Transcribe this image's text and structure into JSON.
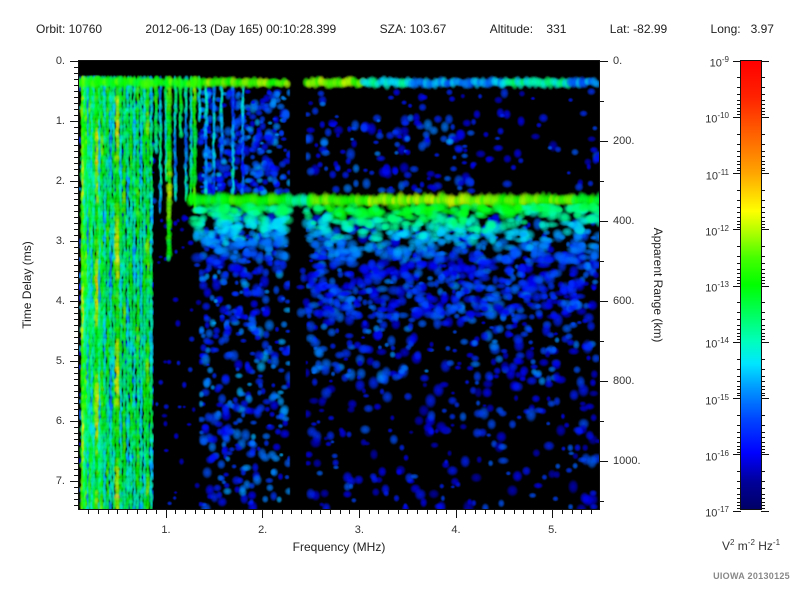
{
  "header": {
    "items": [
      "Orbit: 10760",
      "2012-06-13 (Day 165) 00:10:28.399",
      "SZA: 103.67",
      "Altitude:    331",
      "Lat: -82.99",
      "Long:   3.97"
    ]
  },
  "footer": {
    "credit": "UIOWA 20130125"
  },
  "chart_data": {
    "type": "heatmap",
    "xlabel": "Frequency (MHz)",
    "x_range": [
      0.1,
      5.5
    ],
    "x_major_ticks": [
      1,
      2,
      3,
      4,
      5
    ],
    "x_tick_labels": [
      "1.",
      "2.",
      "3.",
      "4.",
      "5."
    ],
    "x_minor_step": 0.1,
    "ylabel_left": "Time Delay (ms)",
    "y_range": [
      0,
      7.5
    ],
    "y_major_ticks": [
      0,
      1,
      2,
      3,
      4,
      5,
      6,
      7
    ],
    "y_tick_labels": [
      "0.",
      "1.",
      "2.",
      "3.",
      "4.",
      "5.",
      "6.",
      "7."
    ],
    "y_minor_step": 0.1,
    "ylabel_right": "Apparent Range (km)",
    "right_range": [
      0,
      1125
    ],
    "right_major_ticks": [
      0,
      200,
      400,
      600,
      800,
      1000
    ],
    "right_tick_labels": [
      "0.",
      "200.",
      "400.",
      "600.",
      "800.",
      "1000."
    ],
    "right_minor_step": 100,
    "grid": false,
    "colorbar": {
      "exponent_base": "10",
      "tick_exponents": [
        "-9",
        "-10",
        "-11",
        "-12",
        "-13",
        "-14",
        "-15",
        "-16",
        "-17"
      ],
      "unit_parts": [
        [
          "V",
          "2"
        ],
        [
          "m",
          "-2"
        ],
        [
          "Hz",
          "-1"
        ]
      ],
      "stops": [
        [
          0.0,
          "#000066"
        ],
        [
          0.06,
          "#000099"
        ],
        [
          0.125,
          "#0000ff"
        ],
        [
          0.2,
          "#0044ff"
        ],
        [
          0.27,
          "#0099ff"
        ],
        [
          0.325,
          "#00e6ff"
        ],
        [
          0.375,
          "#00ffbb"
        ],
        [
          0.43,
          "#00ff66"
        ],
        [
          0.5,
          "#00ff00"
        ],
        [
          0.56,
          "#44ff00"
        ],
        [
          0.615,
          "#aaff00"
        ],
        [
          0.665,
          "#ffff00"
        ],
        [
          0.75,
          "#ffa500"
        ],
        [
          0.83,
          "#ff6600"
        ],
        [
          0.92,
          "#ff2200"
        ],
        [
          1.0,
          "#ff0000"
        ]
      ]
    },
    "seed": 20130125,
    "features": {
      "striations": {
        "d0": 0.3,
        "d1": 7.5,
        "lines": [
          [
            0.135,
            -13.0,
            2
          ],
          [
            0.148,
            -12.3,
            2.5
          ],
          [
            0.163,
            -13.6,
            2
          ],
          [
            0.178,
            -13.1,
            2
          ],
          [
            0.196,
            -14.3,
            2
          ],
          [
            0.215,
            -13.3,
            2.2
          ],
          [
            0.235,
            -14.0,
            2
          ],
          [
            0.258,
            -13.5,
            2
          ],
          [
            0.29,
            -12.3,
            3
          ],
          [
            0.315,
            -14.1,
            2
          ],
          [
            0.34,
            -13.2,
            2.2
          ],
          [
            0.368,
            -13.8,
            2
          ],
          [
            0.4,
            -13.3,
            2.2
          ],
          [
            0.43,
            -14.2,
            2
          ],
          [
            0.46,
            -13.6,
            2
          ],
          [
            0.5,
            -12.4,
            3
          ],
          [
            0.535,
            -13.8,
            2
          ],
          [
            0.57,
            -13.2,
            2.2
          ],
          [
            0.605,
            -14.0,
            2
          ],
          [
            0.64,
            -13.4,
            2.2
          ],
          [
            0.675,
            -13.9,
            2
          ],
          [
            0.71,
            -13.3,
            2.2
          ],
          [
            0.745,
            -14.1,
            2
          ],
          [
            0.78,
            -13.5,
            2.2
          ],
          [
            0.815,
            -13.1,
            2.4
          ],
          [
            0.85,
            -13.9,
            2
          ]
        ]
      },
      "streaks": [
        [
          0.9,
          -13.4,
          2.5,
          0.3,
          1.5
        ],
        [
          0.945,
          -14.3,
          2,
          0.3,
          2.5
        ],
        [
          1.005,
          -14.0,
          2,
          0.3,
          2.0
        ],
        [
          1.035,
          -12.7,
          3,
          0.3,
          3.3
        ],
        [
          1.1,
          -14.4,
          2,
          0.3,
          2.3
        ],
        [
          1.155,
          -13.7,
          2.2,
          0.3,
          1.25
        ],
        [
          1.21,
          -14.5,
          2,
          0.3,
          2.3
        ],
        [
          1.265,
          -14.0,
          2,
          0.3,
          2.4
        ],
        [
          1.3,
          -12.9,
          2.6,
          0.3,
          2.5
        ],
        [
          1.35,
          -13.9,
          2,
          0.3,
          1.0
        ],
        [
          1.42,
          -14.6,
          2,
          0.45,
          2.2
        ],
        [
          1.5,
          -14.9,
          2,
          0.45,
          2.2
        ],
        [
          1.58,
          -14.6,
          2,
          0.45,
          1.6
        ],
        [
          1.7,
          -14.8,
          2,
          0.45,
          2.2
        ],
        [
          1.8,
          -15.0,
          2,
          0.45,
          2.2
        ]
      ],
      "noise_regions": [
        [
          0.1,
          0.875,
          0.3,
          7.5,
          650,
          -16.2,
          -14.6,
          2,
          5
        ],
        [
          1.36,
          2.29,
          0.5,
          2.2,
          260,
          -16.0,
          -14.7,
          2.5,
          5.5
        ],
        [
          2.455,
          5.5,
          0.5,
          0.95,
          28,
          -16.3,
          -15.3,
          2.5,
          5
        ],
        [
          2.455,
          4.2,
          0.95,
          2.2,
          135,
          -16.2,
          -15.0,
          2.5,
          6
        ],
        [
          4.2,
          5.5,
          0.95,
          2.2,
          32,
          -16.3,
          -15.2,
          2.5,
          6
        ],
        [
          1.36,
          2.29,
          2.5,
          7.5,
          430,
          -16.0,
          -14.7,
          2.5,
          6
        ],
        [
          2.455,
          5.5,
          2.6,
          5.4,
          540,
          -16.2,
          -14.9,
          2.5,
          6.5
        ],
        [
          2.455,
          5.5,
          5.4,
          7.5,
          210,
          -16.4,
          -15.2,
          2.5,
          6.5
        ]
      ],
      "noise_regions_late": [
        [
          0.9,
          1.345,
          2.6,
          7.5,
          42,
          -16.3,
          -15.5,
          2,
          4
        ]
      ],
      "black_rects": [
        [
          0.875,
          1.345,
          2.55,
          7.5
        ]
      ],
      "gap": [
        2.29,
        2.455
      ],
      "top_band": {
        "center": 0.36,
        "halfwidth": 0.09,
        "noise": 0.5,
        "segments": [
          [
            0.1,
            1.3,
            -12.8
          ],
          [
            1.3,
            2.28,
            -12.5
          ],
          [
            2.28,
            2.46,
            null
          ],
          [
            2.46,
            3.05,
            -12.3
          ],
          [
            3.05,
            3.55,
            -14.2
          ],
          [
            3.55,
            4.5,
            -14.8
          ],
          [
            4.5,
            5.2,
            -14.0
          ],
          [
            5.2,
            5.5,
            -15.0
          ]
        ]
      },
      "echo_band": {
        "center": 2.33,
        "halfwidth": 0.12,
        "noise": 0.4,
        "segments": [
          [
            1.25,
            1.6,
            -13.2
          ],
          [
            1.6,
            2.28,
            -12.8
          ],
          [
            2.28,
            2.5,
            -13.8
          ],
          [
            2.5,
            3.1,
            -12.5
          ],
          [
            3.1,
            4.3,
            -12.2
          ],
          [
            4.3,
            5.25,
            -12.5
          ],
          [
            5.25,
            5.5,
            -13.0
          ]
        ],
        "tail": [
          2.45,
          3.5,
          700,
          1.3,
          5.5,
          -13.6,
          -15.9
        ],
        "tail2": [
          3.5,
          4.3,
          260,
          2.4,
          5.3,
          -16.2,
          -15.1
        ]
      },
      "bright_spots": [
        [
          3.95,
          1.35,
          -14.6,
          5
        ],
        [
          2.63,
          0.72,
          -15.0,
          4
        ],
        [
          1.62,
          3.05,
          -14.4,
          5
        ],
        [
          2.05,
          2.92,
          -14.7,
          4
        ],
        [
          2.93,
          3.98,
          -15.0,
          5
        ],
        [
          4.1,
          4.7,
          -15.2,
          5
        ],
        [
          4.78,
          3.12,
          -14.7,
          5
        ],
        [
          5.12,
          2.95,
          -14.9,
          4
        ],
        [
          3.45,
          5.2,
          -15.1,
          4
        ],
        [
          1.9,
          6.4,
          -15.0,
          4
        ],
        [
          2.6,
          6.9,
          -15.2,
          4
        ],
        [
          4.5,
          5.9,
          -15.4,
          5
        ],
        [
          3.2,
          1.55,
          -15.0,
          4
        ],
        [
          1.55,
          1.9,
          -14.6,
          4
        ]
      ]
    }
  }
}
